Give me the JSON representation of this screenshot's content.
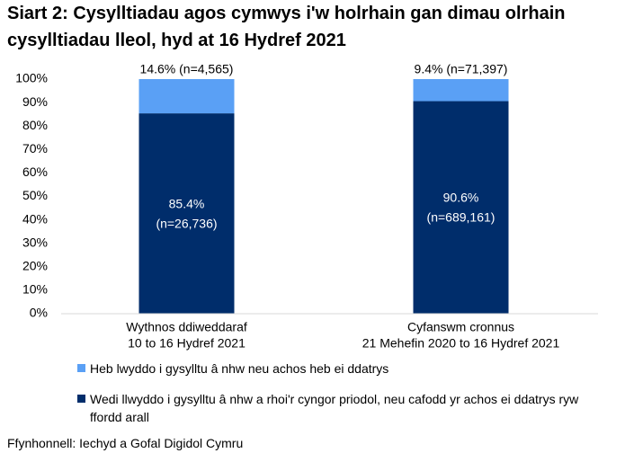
{
  "chart_data": {
    "type": "stacked_bar",
    "title": "Siart 2: Cysylltiadau agos cymwys i'w holrhain gan dimau olrhain cysylltiadau lleol, hyd at 16 Hydref 2021",
    "categories": [
      [
        "Wythnos ddiweddaraf",
        "10 to 16 Hydref 2021"
      ],
      [
        "Cyfanswm cronnus",
        "21 Mehefin 2020 to 16 Hydref 2021"
      ]
    ],
    "series": [
      {
        "name": "Wedi llwyddo i gysylltu â nhw a rhoi'r cyngor priodol, neu cafodd yr achos ei ddatrys ryw ffordd arall",
        "color": "#002d6b",
        "values": [
          85.4,
          90.6
        ],
        "value_labels": [
          [
            "85.4%",
            "(n=26,736)"
          ],
          [
            "90.6%",
            "(n=689,161)"
          ]
        ]
      },
      {
        "name": "Heb lwyddo i gysylltu â nhw neu achos heb ei ddatrys",
        "color": "#5aa0f5",
        "values": [
          14.6,
          9.4
        ],
        "value_labels": [
          "14.6% (n=4,565)",
          "9.4% (n=71,397)"
        ]
      }
    ],
    "ylim": [
      0,
      100
    ],
    "yticks": [
      {
        "value": 0,
        "label": "0%"
      },
      {
        "value": 10,
        "label": "10%"
      },
      {
        "value": 20,
        "label": "20%"
      },
      {
        "value": 30,
        "label": "30%"
      },
      {
        "value": 40,
        "label": "40%"
      },
      {
        "value": 50,
        "label": "50%"
      },
      {
        "value": 60,
        "label": "60%"
      },
      {
        "value": 70,
        "label": "70%"
      },
      {
        "value": 80,
        "label": "80%"
      },
      {
        "value": 90,
        "label": "90%"
      },
      {
        "value": 100,
        "label": "100%"
      }
    ],
    "source": "Ffynhonnell: Iechyd a Gofal Digidol Cymru"
  }
}
